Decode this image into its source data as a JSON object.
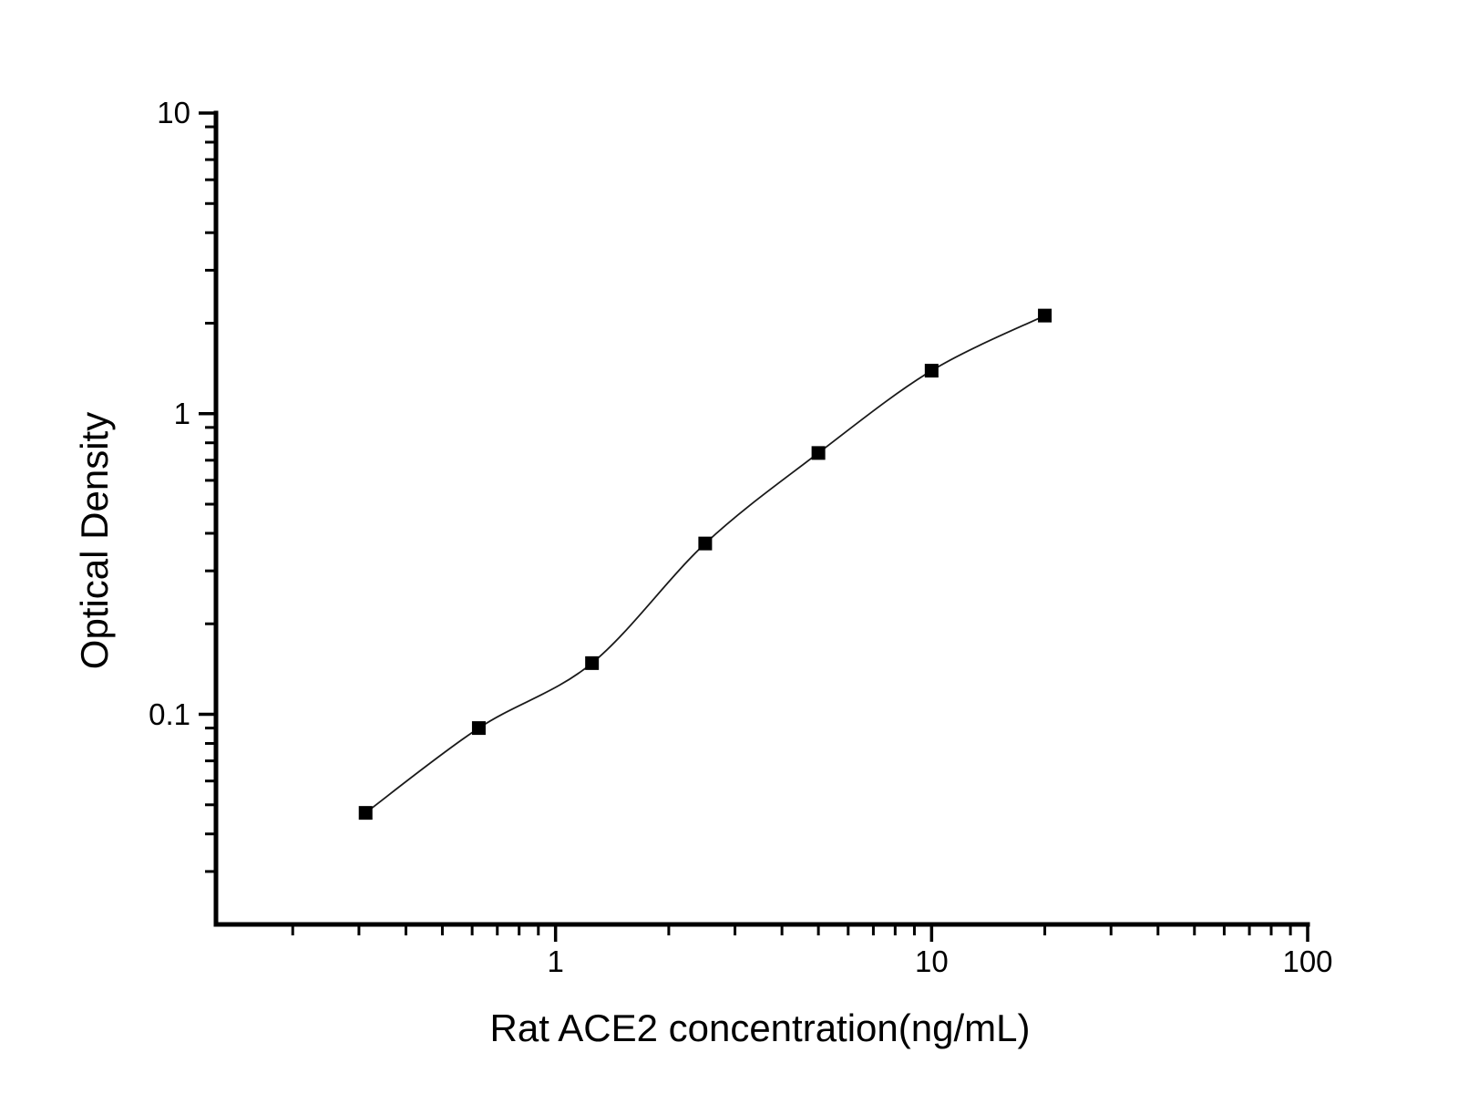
{
  "colors": {
    "background": "#ffffff",
    "axis": "#000000",
    "curve": "#1a1a1a",
    "marker": "#000000",
    "text": "#000000"
  },
  "chart_data": {
    "type": "line",
    "subtype": "scatter-with-smooth-fit",
    "title": "",
    "xlabel": "Rat ACE2 concentration(ng/mL)",
    "ylabel": "Optical Density",
    "x_scale": "log",
    "y_scale": "log",
    "xlim": [
      0.125,
      100
    ],
    "ylim": [
      0.02,
      10
    ],
    "grid": false,
    "legend": "none",
    "tick_direction": "out",
    "minor_ticks": "log-decades",
    "x_major_ticks": [
      {
        "value": 1,
        "label": "1"
      },
      {
        "value": 10,
        "label": "10"
      },
      {
        "value": 100,
        "label": "100"
      }
    ],
    "y_major_ticks": [
      {
        "value": 0.1,
        "label": "0.1"
      },
      {
        "value": 1,
        "label": "1"
      },
      {
        "value": 10,
        "label": "10"
      }
    ],
    "marker": "filled-square",
    "series": [
      {
        "x": [
          0.3125,
          0.625,
          1.25,
          2.5,
          5,
          10,
          20
        ],
        "y": [
          0.047,
          0.09,
          0.148,
          0.37,
          0.74,
          1.39,
          2.12
        ]
      }
    ]
  }
}
